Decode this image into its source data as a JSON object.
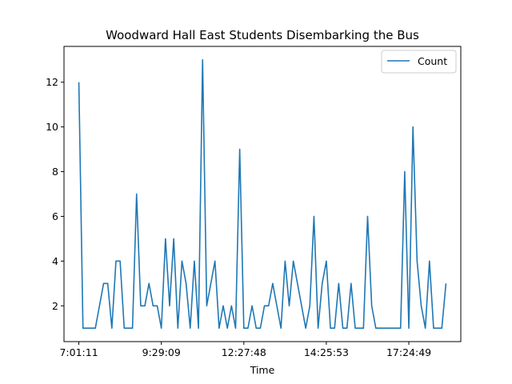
{
  "chart_data": {
    "type": "line",
    "title": "Woodward Hall East Students Disembarking the Bus",
    "xlabel": "Time",
    "ylabel": "",
    "ylim": [
      0.4,
      13.6
    ],
    "xlim": [
      -3.6,
      92.6
    ],
    "y_ticks": [
      2,
      4,
      6,
      8,
      10,
      12
    ],
    "x_ticks": [
      {
        "index": 0,
        "label": "7:01:11"
      },
      {
        "index": 20,
        "label": "9:29:09"
      },
      {
        "index": 40,
        "label": "12:27:48"
      },
      {
        "index": 60,
        "label": "14:25:53"
      },
      {
        "index": 80,
        "label": "17:24:49"
      }
    ],
    "grid": false,
    "legend": {
      "position": "top-right"
    },
    "color": "#1f77b4",
    "series": [
      {
        "name": "Count",
        "values": [
          12,
          1,
          1,
          1,
          1,
          2,
          3,
          3,
          1,
          4,
          4,
          1,
          1,
          1,
          7,
          2,
          2,
          3,
          2,
          2,
          1,
          5,
          2,
          5,
          1,
          4,
          3,
          1,
          4,
          1,
          13,
          2,
          3,
          4,
          1,
          2,
          1,
          2,
          1,
          9,
          1,
          1,
          2,
          1,
          1,
          2,
          2,
          3,
          2,
          1,
          4,
          2,
          4,
          3,
          2,
          1,
          2,
          6,
          1,
          3,
          4,
          1,
          1,
          3,
          1,
          1,
          3,
          1,
          1,
          1,
          6,
          2,
          1,
          1,
          1,
          1,
          1,
          1,
          1,
          8,
          1,
          10,
          4,
          2,
          1,
          4,
          1,
          1,
          1,
          3
        ]
      }
    ]
  }
}
